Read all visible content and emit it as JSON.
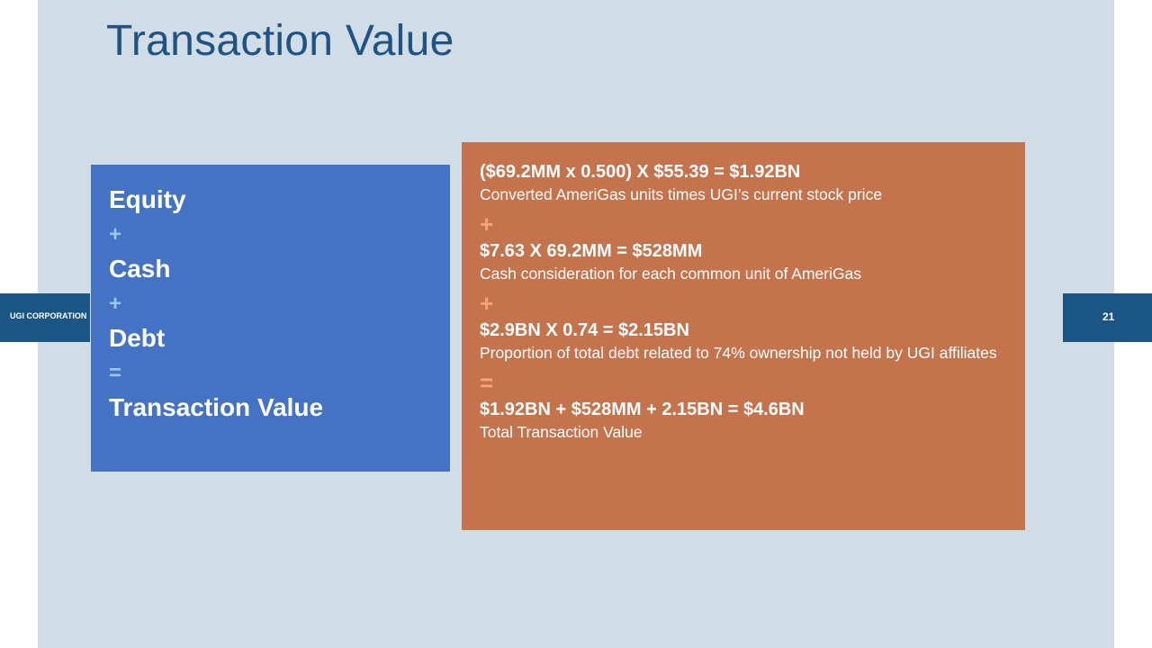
{
  "slide": {
    "title": "Transaction Value",
    "corporation": "UGI CORPORATION",
    "page_number": "21"
  },
  "formula": [
    {
      "text": "Equity",
      "kind": "term"
    },
    {
      "text": "+",
      "kind": "operator"
    },
    {
      "text": "Cash",
      "kind": "term"
    },
    {
      "text": "+",
      "kind": "operator"
    },
    {
      "text": "Debt",
      "kind": "term"
    },
    {
      "text": "=",
      "kind": "operator"
    },
    {
      "text": "Transaction Value",
      "kind": "term"
    }
  ],
  "calculations": {
    "equity": {
      "equation": "($69.2MM x 0.500) X $55.39 = $1.92BN",
      "description": "Converted AmeriGas units times UGI’s current stock price"
    },
    "op1": "+",
    "cash": {
      "equation": "$7.63 X 69.2MM = $528MM",
      "description": "Cash consideration for each common unit of AmeriGas"
    },
    "op2": "+",
    "debt": {
      "equation": "$2.9BN X 0.74 = $2.15BN",
      "description": "Proportion of total debt related to 74% ownership not held by UGI affiliates"
    },
    "op3": "=",
    "total": {
      "equation": "$1.92BN + $528MM + 2.15BN = $4.6BN",
      "description": "Total Transaction Value"
    }
  },
  "colors": {
    "panel_background": "#d0dde7",
    "title_text": "#1f5384",
    "side_tabs": "#1b5585",
    "formula_box": "#4472c4",
    "formula_operator": "#9dc3e6",
    "calc_box": "#c5734c",
    "calc_operator": "#f4a37c"
  }
}
